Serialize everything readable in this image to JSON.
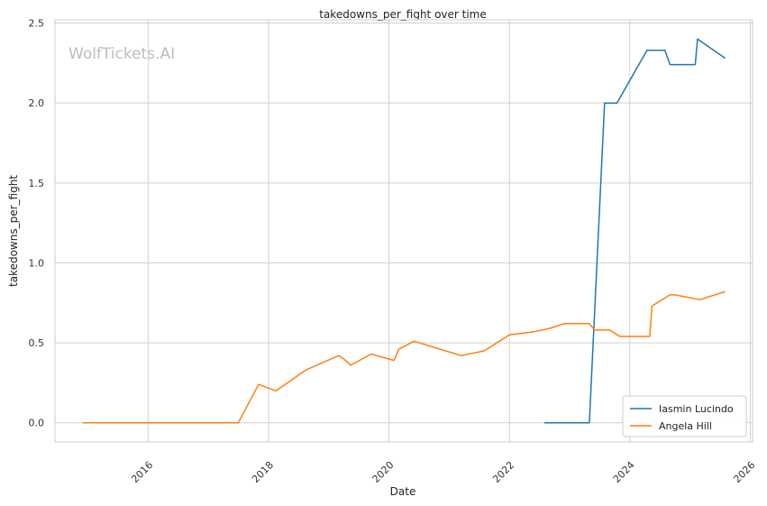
{
  "chart_data": {
    "type": "line",
    "title": "takedowns_per_fight over time",
    "xlabel": "Date",
    "ylabel": "takedowns_per_fight",
    "watermark": "WolfTickets.AI",
    "x_ticks": [
      "2016",
      "2018",
      "2020",
      "2022",
      "2024",
      "2026"
    ],
    "y_ticks": [
      "0.0",
      "0.5",
      "1.0",
      "1.5",
      "2.0",
      "2.5"
    ],
    "xlim": [
      "2014-06-15",
      "2026-01-15"
    ],
    "ylim": [
      -0.12,
      2.52
    ],
    "grid": true,
    "legend_position": "bottom-right",
    "series": [
      {
        "name": "Iasmin Lucindo",
        "color": "#1f77b4",
        "points": [
          [
            "2022-08-01",
            0.0
          ],
          [
            "2023-05-01",
            0.0
          ],
          [
            "2023-08-01",
            2.0
          ],
          [
            "2023-10-15",
            2.0
          ],
          [
            "2024-04-15",
            2.33
          ],
          [
            "2024-08-01",
            2.33
          ],
          [
            "2024-09-01",
            2.24
          ],
          [
            "2025-02-01",
            2.24
          ],
          [
            "2025-02-15",
            2.4
          ],
          [
            "2025-08-01",
            2.28
          ]
        ]
      },
      {
        "name": "Angela Hill",
        "color": "#ff7f0e",
        "points": [
          [
            "2014-12-01",
            0.0
          ],
          [
            "2017-07-01",
            0.0
          ],
          [
            "2017-11-01",
            0.24
          ],
          [
            "2018-02-15",
            0.2
          ],
          [
            "2018-08-15",
            0.33
          ],
          [
            "2019-03-01",
            0.42
          ],
          [
            "2019-04-01",
            0.4
          ],
          [
            "2019-05-15",
            0.36
          ],
          [
            "2019-09-15",
            0.43
          ],
          [
            "2020-02-01",
            0.39
          ],
          [
            "2020-03-01",
            0.46
          ],
          [
            "2020-06-01",
            0.51
          ],
          [
            "2021-03-15",
            0.42
          ],
          [
            "2021-08-01",
            0.45
          ],
          [
            "2022-01-01",
            0.55
          ],
          [
            "2022-06-01",
            0.57
          ],
          [
            "2022-09-01",
            0.59
          ],
          [
            "2022-12-01",
            0.62
          ],
          [
            "2023-05-01",
            0.62
          ],
          [
            "2023-06-01",
            0.58
          ],
          [
            "2023-09-01",
            0.58
          ],
          [
            "2023-11-01",
            0.54
          ],
          [
            "2024-05-01",
            0.54
          ],
          [
            "2024-05-15",
            0.73
          ],
          [
            "2024-09-01",
            0.8
          ],
          [
            "2024-10-01",
            0.8
          ],
          [
            "2025-03-01",
            0.77
          ],
          [
            "2025-08-01",
            0.82
          ]
        ]
      }
    ]
  }
}
